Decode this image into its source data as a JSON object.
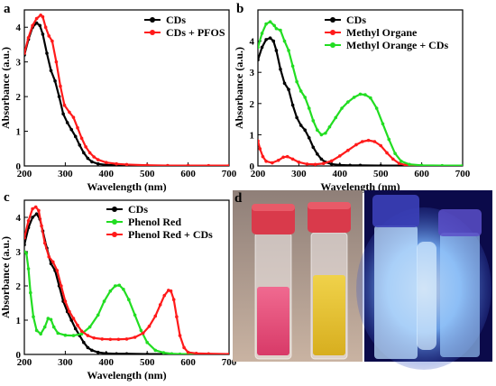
{
  "figure": {
    "panels": [
      {
        "id": "a",
        "letter": "a"
      },
      {
        "id": "b",
        "letter": "b"
      },
      {
        "id": "c",
        "letter": "c"
      },
      {
        "id": "d",
        "letter": "d"
      }
    ]
  },
  "colors": {
    "black": "#000000",
    "red": "#ff1a1a",
    "green": "#22dd22",
    "photo_bg_left": "#a08a7e",
    "photo_bg_right": "#0b0a4a",
    "cap": "#d93a4b",
    "pink_liquid": "#e84a78",
    "yellow_liquid": "#e3c12a",
    "blue_glow": "#7ab8ff"
  },
  "chart_data": [
    {
      "id": "a",
      "type": "line",
      "title": "",
      "xlabel": "Wavelength (nm)",
      "ylabel": "Absorbance (a.u.)",
      "xlim": [
        200,
        700
      ],
      "ylim": [
        0,
        4.5
      ],
      "xticks": [
        200,
        300,
        400,
        500,
        600,
        700
      ],
      "yticks": [
        0,
        1,
        2,
        3,
        4
      ],
      "grid": false,
      "legend": "top-right",
      "series": [
        {
          "name": "CDs",
          "color": "#000000",
          "x": [
            200,
            210,
            220,
            230,
            238,
            245,
            255,
            265,
            275,
            285,
            295,
            305,
            315,
            325,
            335,
            345,
            355,
            365,
            380,
            400,
            425,
            450,
            500,
            550,
            600,
            650,
            700
          ],
          "y": [
            3.2,
            3.65,
            4.0,
            4.12,
            4.05,
            3.8,
            3.25,
            2.75,
            2.45,
            2.0,
            1.5,
            1.25,
            1.05,
            0.85,
            0.6,
            0.38,
            0.22,
            0.12,
            0.06,
            0.03,
            0.02,
            0.02,
            0.01,
            0.01,
            0.01,
            0.0,
            0.0
          ]
        },
        {
          "name": "CDs +  PFOS",
          "color": "#ff1a1a",
          "x": [
            200,
            210,
            220,
            230,
            240,
            245,
            252,
            260,
            268,
            278,
            288,
            298,
            310,
            320,
            330,
            340,
            350,
            360,
            370,
            380,
            400,
            425,
            450,
            500,
            550,
            600,
            650,
            700
          ],
          "y": [
            3.25,
            3.7,
            4.05,
            4.25,
            4.35,
            4.3,
            4.0,
            3.75,
            3.6,
            3.0,
            2.3,
            1.75,
            1.55,
            1.4,
            1.1,
            0.8,
            0.55,
            0.38,
            0.26,
            0.18,
            0.1,
            0.06,
            0.04,
            0.02,
            0.01,
            0.01,
            0.01,
            0.01
          ]
        }
      ]
    },
    {
      "id": "b",
      "type": "line",
      "title": "",
      "xlabel": "Wavelength (nm)",
      "ylabel": "Absorbance (a.u.)",
      "xlim": [
        200,
        700
      ],
      "ylim": [
        0,
        5
      ],
      "xticks": [
        200,
        300,
        400,
        500,
        600,
        700
      ],
      "yticks": [
        0,
        1,
        2,
        3,
        4
      ],
      "grid": false,
      "legend": "top-right",
      "series": [
        {
          "name": "CDs",
          "color": "#000000",
          "x": [
            200,
            210,
            220,
            230,
            238,
            245,
            255,
            265,
            275,
            285,
            295,
            305,
            315,
            325,
            335,
            345,
            355,
            365,
            380,
            400,
            425,
            450,
            500,
            550,
            600,
            650,
            700
          ],
          "y": [
            3.4,
            3.8,
            4.05,
            4.1,
            4.0,
            3.7,
            3.1,
            2.65,
            2.45,
            1.95,
            1.55,
            1.3,
            1.15,
            0.9,
            0.6,
            0.38,
            0.22,
            0.12,
            0.06,
            0.03,
            0.02,
            0.02,
            0.01,
            0.01,
            0.01,
            0.0,
            0.0
          ]
        },
        {
          "name": "Methyl Organe",
          "color": "#ff1a1a",
          "x": [
            200,
            205,
            212,
            220,
            235,
            250,
            262,
            272,
            285,
            300,
            320,
            340,
            360,
            380,
            400,
            420,
            440,
            455,
            470,
            485,
            500,
            515,
            530,
            545,
            560,
            580,
            600,
            650,
            700
          ],
          "y": [
            0.8,
            0.55,
            0.3,
            0.15,
            0.1,
            0.18,
            0.28,
            0.3,
            0.22,
            0.12,
            0.06,
            0.05,
            0.08,
            0.16,
            0.32,
            0.5,
            0.68,
            0.78,
            0.82,
            0.78,
            0.65,
            0.42,
            0.22,
            0.08,
            0.03,
            0.01,
            0.01,
            0.0,
            0.0
          ]
        },
        {
          "name": "Methyl Orange +  CDs",
          "color": "#22dd22",
          "x": [
            200,
            210,
            220,
            230,
            240,
            245,
            255,
            265,
            275,
            285,
            295,
            305,
            315,
            325,
            335,
            345,
            355,
            365,
            375,
            390,
            405,
            420,
            435,
            450,
            462,
            475,
            490,
            505,
            520,
            535,
            550,
            570,
            600,
            650,
            700
          ],
          "y": [
            3.8,
            4.25,
            4.55,
            4.62,
            4.5,
            4.4,
            4.35,
            4.0,
            3.7,
            3.2,
            2.7,
            2.4,
            2.2,
            1.85,
            1.45,
            1.15,
            1.0,
            1.05,
            1.25,
            1.55,
            1.85,
            2.05,
            2.2,
            2.3,
            2.28,
            2.18,
            1.85,
            1.35,
            0.85,
            0.4,
            0.15,
            0.05,
            0.02,
            0.01,
            0.01
          ]
        }
      ]
    },
    {
      "id": "c",
      "type": "line",
      "title": "",
      "xlabel": "Wavelength (nm)",
      "ylabel": "Absorbance (a.u.)",
      "xlim": [
        200,
        700
      ],
      "ylim": [
        0,
        4.5
      ],
      "xticks": [
        200,
        300,
        400,
        500,
        600,
        700
      ],
      "yticks": [
        0,
        1,
        2,
        3,
        4
      ],
      "grid": false,
      "legend": "top-right",
      "series": [
        {
          "name": "CDs",
          "color": "#000000",
          "x": [
            200,
            210,
            220,
            230,
            238,
            245,
            255,
            265,
            275,
            285,
            295,
            305,
            315,
            325,
            335,
            345,
            355,
            365,
            380,
            400,
            425,
            450,
            500,
            550,
            600,
            650,
            700
          ],
          "y": [
            3.2,
            3.7,
            4.0,
            4.1,
            3.95,
            3.6,
            3.1,
            2.65,
            2.45,
            2.0,
            1.55,
            1.25,
            1.0,
            0.75,
            0.55,
            0.35,
            0.2,
            0.12,
            0.06,
            0.03,
            0.02,
            0.02,
            0.01,
            0.01,
            0.01,
            0.0,
            0.0
          ]
        },
        {
          "name": "Phenol Red",
          "color": "#22dd22",
          "x": [
            200,
            205,
            210,
            215,
            222,
            230,
            240,
            250,
            258,
            265,
            272,
            282,
            300,
            320,
            340,
            360,
            380,
            395,
            410,
            422,
            432,
            442,
            455,
            470,
            485,
            500,
            520,
            540,
            560,
            580,
            600,
            650,
            700
          ],
          "y": [
            3.0,
            2.95,
            2.5,
            1.8,
            1.1,
            0.7,
            0.6,
            0.8,
            1.05,
            1.02,
            0.8,
            0.62,
            0.56,
            0.55,
            0.6,
            0.8,
            1.15,
            1.55,
            1.85,
            2.0,
            2.02,
            1.9,
            1.6,
            1.15,
            0.7,
            0.35,
            0.12,
            0.05,
            0.02,
            0.01,
            0.01,
            0.0,
            0.0
          ]
        },
        {
          "name": "Phenol Red +  CDs",
          "color": "#ff1a1a",
          "x": [
            200,
            210,
            220,
            228,
            235,
            242,
            250,
            260,
            270,
            280,
            290,
            300,
            310,
            320,
            330,
            340,
            355,
            370,
            390,
            410,
            430,
            450,
            470,
            490,
            505,
            520,
            532,
            542,
            552,
            558,
            565,
            572,
            580,
            590,
            600,
            620,
            650,
            700
          ],
          "y": [
            3.4,
            3.9,
            4.25,
            4.3,
            4.2,
            3.75,
            3.25,
            2.85,
            2.7,
            2.45,
            2.0,
            1.55,
            1.25,
            1.05,
            0.85,
            0.68,
            0.55,
            0.48,
            0.45,
            0.44,
            0.44,
            0.45,
            0.5,
            0.62,
            0.82,
            1.12,
            1.45,
            1.72,
            1.87,
            1.85,
            1.6,
            1.1,
            0.55,
            0.2,
            0.06,
            0.03,
            0.02,
            0.01
          ]
        }
      ]
    }
  ]
}
